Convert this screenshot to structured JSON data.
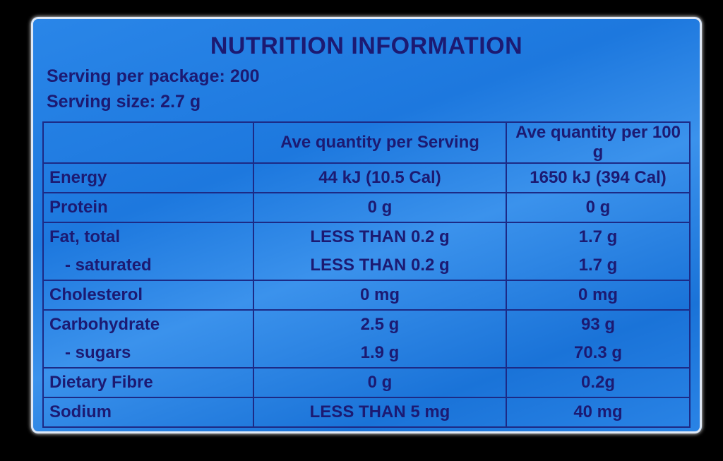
{
  "title": "NUTRITION INFORMATION",
  "serving": [
    "Serving per package: 200",
    "Serving size: 2.7 g"
  ],
  "table": {
    "header": [
      "Ave quantity per Serving",
      "Ave quantity per 100 g"
    ],
    "rows": [
      [
        "Energy",
        "44 kJ (10.5 Cal)",
        "1650 kJ (394 Cal)"
      ],
      [
        "Protein",
        "0 g",
        "0 g"
      ],
      [
        "Fat, total",
        "LESS THAN 0.2 g",
        "1.7 g"
      ],
      [
        "- saturated",
        "LESS THAN 0.2 g",
        "1.7 g"
      ],
      [
        "Cholesterol",
        "0 mg",
        "0 mg"
      ],
      [
        "Carbohydrate",
        "2.5 g",
        "93 g"
      ],
      [
        "- sugars",
        "1.9 g",
        "70.3 g"
      ],
      [
        "Dietary Fibre",
        "0 g",
        "0.2g"
      ],
      [
        "Sodium",
        "LESS THAN 5 mg",
        "40 mg"
      ]
    ]
  }
}
